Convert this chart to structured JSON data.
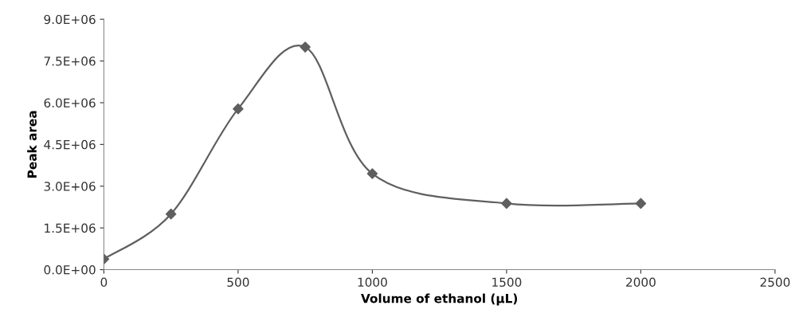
{
  "chart_data": {
    "type": "line",
    "xlabel": "Volume of ethanol (µL)",
    "ylabel": "Peak area",
    "x": [
      0,
      250,
      500,
      750,
      1000,
      1500,
      2000
    ],
    "series": [
      {
        "color": "#5f5f5f",
        "values": [
          380000,
          2000000,
          5780000,
          8000000,
          3450000,
          2380000,
          2380000
        ]
      }
    ],
    "xlim": [
      0,
      2500
    ],
    "xticks": [
      0,
      500,
      1000,
      1500,
      2000,
      2500
    ],
    "ylim": [
      0,
      9000000
    ],
    "yticks": [
      {
        "value": 0,
        "label": "0.0E+00"
      },
      {
        "value": 1500000,
        "label": "1.5E+06"
      },
      {
        "value": 3000000,
        "label": "3.0E+06"
      },
      {
        "value": 4500000,
        "label": "4.5E+06"
      },
      {
        "value": 6000000,
        "label": "6.0E+06"
      },
      {
        "value": 7500000,
        "label": "7.5E+06"
      },
      {
        "value": 9000000,
        "label": "9.0E+06"
      }
    ],
    "grid": false,
    "legend": false,
    "marker": "diamond",
    "line_style": "solid"
  }
}
